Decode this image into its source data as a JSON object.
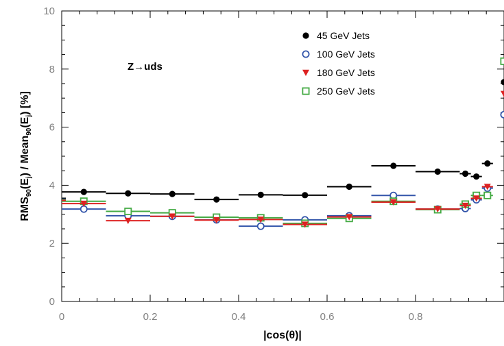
{
  "chart_data": {
    "type": "scatter",
    "xlabel": "|cos(θ)|",
    "ylabel": "RMS90(Ej) / Mean90(Ej) [%]",
    "ylabel_parts": {
      "a": "RMS",
      "b": "90",
      "c": "(E",
      "d": "j",
      "e": ") / Mean",
      "f": "90",
      "g": "(E",
      "h": "j",
      "i": ") [%]"
    },
    "annotation": "Z→uds",
    "xlim": [
      0,
      1
    ],
    "ylim": [
      0,
      10
    ],
    "xticks": [
      "0",
      "0.2",
      "0.4",
      "0.6",
      "0.8"
    ],
    "yticks": [
      "0",
      "2",
      "4",
      "6",
      "8",
      "10"
    ],
    "grid": false,
    "legend_position": "top-right",
    "bins": [
      [
        0,
        0.1
      ],
      [
        0.1,
        0.2
      ],
      [
        0.2,
        0.3
      ],
      [
        0.3,
        0.4
      ],
      [
        0.4,
        0.5
      ],
      [
        0.5,
        0.6
      ],
      [
        0.6,
        0.7
      ],
      [
        0.7,
        0.8
      ],
      [
        0.8,
        0.9
      ],
      [
        0.9,
        0.925
      ],
      [
        0.925,
        0.95
      ],
      [
        0.95,
        0.975
      ],
      [
        0.975,
        1.0
      ]
    ],
    "series": [
      {
        "name": "45 GeV Jets",
        "marker": "filled-circle",
        "color": "#000000",
        "values": [
          3.77,
          3.72,
          3.7,
          3.51,
          3.67,
          3.66,
          3.95,
          4.67,
          4.47,
          4.4,
          4.3,
          4.75,
          7.55
        ]
      },
      {
        "name": "100 GeV Jets",
        "marker": "open-circle",
        "color": "#3355aa",
        "values": [
          3.18,
          2.95,
          2.93,
          2.81,
          2.59,
          2.81,
          2.95,
          3.65,
          3.18,
          3.2,
          3.5,
          3.9,
          6.43
        ]
      },
      {
        "name": "180 GeV Jets",
        "marker": "filled-triangle-down",
        "color": "#dd2222",
        "values": [
          3.37,
          2.78,
          2.93,
          2.8,
          2.82,
          2.65,
          2.91,
          3.42,
          3.18,
          3.3,
          3.55,
          3.95,
          7.15
        ]
      },
      {
        "name": "250 GeV Jets",
        "marker": "open-square",
        "color": "#44aa44",
        "values": [
          3.45,
          3.1,
          3.05,
          2.9,
          2.88,
          2.69,
          2.86,
          3.45,
          3.16,
          3.35,
          3.65,
          3.65,
          8.27
        ]
      }
    ],
    "edge_marks_x0": [
      3.55,
      3.52,
      3.48,
      3.5
    ]
  }
}
